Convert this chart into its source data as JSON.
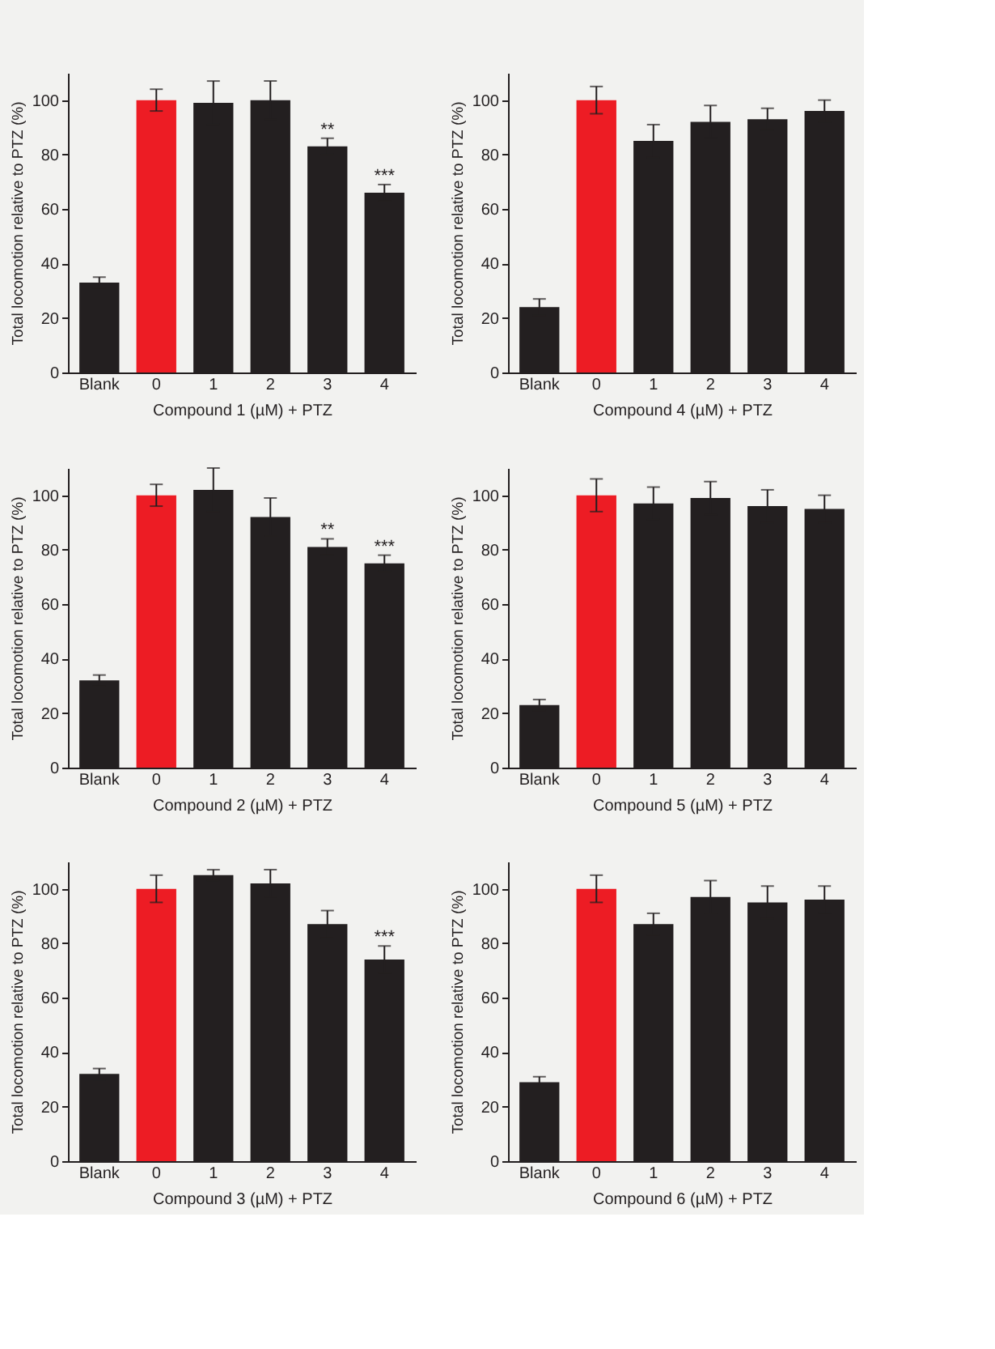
{
  "chart_data": [
    {
      "type": "bar",
      "xlabel": "Compound 1 (µM) + PTZ",
      "ylabel": "Total locomotion relative to PTZ (%)",
      "categories": [
        "Blank",
        "0",
        "1",
        "2",
        "3",
        "4"
      ],
      "values": [
        33,
        100,
        99,
        100,
        83,
        66
      ],
      "errors": [
        2,
        4,
        8,
        7,
        3,
        3
      ],
      "colors": [
        "#231f20",
        "#ed1c24",
        "#231f20",
        "#231f20",
        "#231f20",
        "#231f20"
      ],
      "ylim": [
        0,
        110
      ],
      "yticks": [
        0,
        20,
        40,
        60,
        80,
        100
      ],
      "grid": false,
      "annotations": [
        {
          "text": "**",
          "x": "3",
          "y": 86
        },
        {
          "text": "***",
          "x": "4",
          "y": 69
        }
      ]
    },
    {
      "type": "bar",
      "xlabel": "Compound 4 (µM) + PTZ",
      "ylabel": "Total locomotion relative to PTZ (%)",
      "categories": [
        "Blank",
        "0",
        "1",
        "2",
        "3",
        "4"
      ],
      "values": [
        24,
        100,
        85,
        92,
        93,
        96
      ],
      "errors": [
        3,
        5,
        6,
        6,
        4,
        4
      ],
      "colors": [
        "#231f20",
        "#ed1c24",
        "#231f20",
        "#231f20",
        "#231f20",
        "#231f20"
      ],
      "ylim": [
        0,
        110
      ],
      "yticks": [
        0,
        20,
        40,
        60,
        80,
        100
      ],
      "grid": false
    },
    {
      "type": "bar",
      "xlabel": "Compound 2 (µM) + PTZ",
      "ylabel": "Total locomotion relative to PTZ (%)",
      "categories": [
        "Blank",
        "0",
        "1",
        "2",
        "3",
        "4"
      ],
      "values": [
        32,
        100,
        102,
        92,
        81,
        75
      ],
      "errors": [
        2,
        4,
        8,
        7,
        3,
        3
      ],
      "colors": [
        "#231f20",
        "#ed1c24",
        "#231f20",
        "#231f20",
        "#231f20",
        "#231f20"
      ],
      "ylim": [
        0,
        110
      ],
      "yticks": [
        0,
        20,
        40,
        60,
        80,
        100
      ],
      "grid": false,
      "annotations": [
        {
          "text": "**",
          "x": "3",
          "y": 84
        },
        {
          "text": "***",
          "x": "4",
          "y": 78
        }
      ]
    },
    {
      "type": "bar",
      "xlabel": "Compound 5 (µM) + PTZ",
      "ylabel": "Total locomotion relative to PTZ (%)",
      "categories": [
        "Blank",
        "0",
        "1",
        "2",
        "3",
        "4"
      ],
      "values": [
        23,
        100,
        97,
        99,
        96,
        95
      ],
      "errors": [
        2,
        6,
        6,
        6,
        6,
        5
      ],
      "colors": [
        "#231f20",
        "#ed1c24",
        "#231f20",
        "#231f20",
        "#231f20",
        "#231f20"
      ],
      "ylim": [
        0,
        110
      ],
      "yticks": [
        0,
        20,
        40,
        60,
        80,
        100
      ],
      "grid": false
    },
    {
      "type": "bar",
      "xlabel": "Compound 3 (µM) + PTZ",
      "ylabel": "Total locomotion relative to PTZ (%)",
      "categories": [
        "Blank",
        "0",
        "1",
        "2",
        "3",
        "4"
      ],
      "values": [
        32,
        100,
        105,
        102,
        87,
        74
      ],
      "errors": [
        2,
        5,
        2,
        5,
        5,
        5
      ],
      "colors": [
        "#231f20",
        "#ed1c24",
        "#231f20",
        "#231f20",
        "#231f20",
        "#231f20"
      ],
      "ylim": [
        0,
        110
      ],
      "yticks": [
        0,
        20,
        40,
        60,
        80,
        100
      ],
      "grid": false,
      "annotations": [
        {
          "text": "***",
          "x": "4",
          "y": 79
        }
      ]
    },
    {
      "type": "bar",
      "xlabel": "Compound 6 (µM) + PTZ",
      "ylabel": "Total locomotion relative to PTZ (%)",
      "categories": [
        "Blank",
        "0",
        "1",
        "2",
        "3",
        "4"
      ],
      "values": [
        29,
        100,
        87,
        97,
        95,
        96
      ],
      "errors": [
        2,
        5,
        4,
        6,
        6,
        5
      ],
      "colors": [
        "#231f20",
        "#ed1c24",
        "#231f20",
        "#231f20",
        "#231f20",
        "#231f20"
      ],
      "ylim": [
        0,
        110
      ],
      "yticks": [
        0,
        20,
        40,
        60,
        80,
        100
      ],
      "grid": false
    }
  ]
}
